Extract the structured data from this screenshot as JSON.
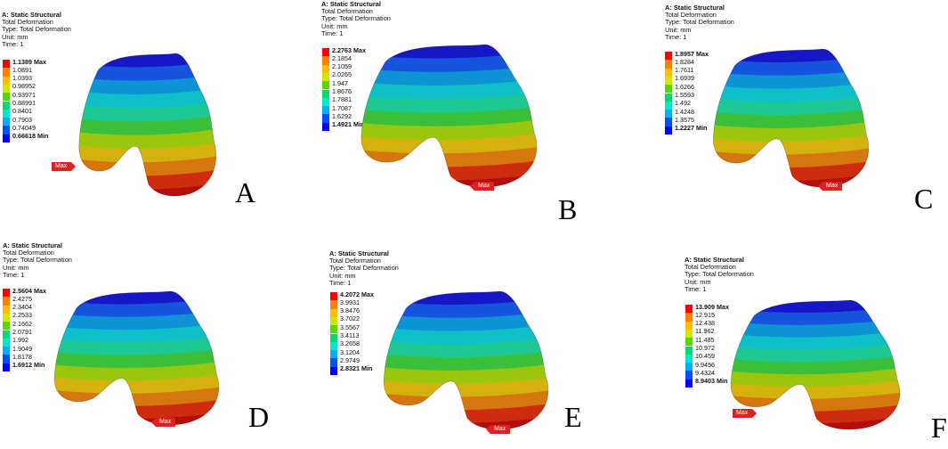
{
  "panels": [
    {
      "letter": "A",
      "title": "A: Static Structural",
      "result": "Total Deformation",
      "type": "Type: Total Deformation",
      "unit": "Unit: mm",
      "time": "Time: 1",
      "legend": [
        "1.1389 Max",
        "1.0891",
        "1.0393",
        "0.98952",
        "0.93971",
        "0.88991",
        "0.8401",
        "0.7903",
        "0.74049",
        "0.66618 Min"
      ],
      "max_label": "Max"
    },
    {
      "letter": "B",
      "title": "A: Static Structural",
      "result": "Total Deformation",
      "type": "Type: Total Deformation",
      "unit": "Unit: mm",
      "time": "Time: 1",
      "legend": [
        "2.2763 Max",
        "2.1854",
        "2.1059",
        "2.0265",
        "1.947",
        "1.8676",
        "1.7881",
        "1.7087",
        "1.6292",
        "1.4921 Min"
      ],
      "max_label": "Max"
    },
    {
      "letter": "C",
      "title": "A: Static Structural",
      "result": "Total Deformation",
      "type": "Type: Total Deformation",
      "unit": "Unit: mm",
      "time": "Time: 1",
      "legend": [
        "1.8957 Max",
        "1.8284",
        "1.7611",
        "1.6939",
        "1.6266",
        "1.5593",
        "1.492",
        "1.4248",
        "1.3575",
        "1.2227 Min"
      ],
      "max_label": "Max"
    },
    {
      "letter": "D",
      "title": "A: Static Structural",
      "result": "Total Deformation",
      "type": "Type: Total Deformation",
      "unit": "Unit: mm",
      "time": "Time: 1",
      "legend": [
        "2.5604 Max",
        "2.4275",
        "2.3404",
        "2.2533",
        "2.1662",
        "2.0791",
        "1.992",
        "1.9049",
        "1.8178",
        "1.6912 Min"
      ],
      "max_label": "Max"
    },
    {
      "letter": "E",
      "title": "A: Static Structural",
      "result": "Total Deformation",
      "type": "Type: Total Deformation",
      "unit": "Unit: mm",
      "time": "Time: 1",
      "legend": [
        "4.2072 Max",
        "3.9931",
        "3.8476",
        "3.7022",
        "3.5567",
        "3.4113",
        "3.2658",
        "3.1204",
        "2.9749",
        "2.8321 Min"
      ],
      "max_label": "Max"
    },
    {
      "letter": "F",
      "title": "A: Static Structural",
      "result": "Total Deformation",
      "type": "Type: Total Deformation",
      "unit": "Unit: mm",
      "time": "Time: 1",
      "legend": [
        "13.909 Max",
        "12.915",
        "12.438",
        "11.962",
        "11.485",
        "10.972",
        "10.459",
        "9.9456",
        "9.4324",
        "8.9403 Min"
      ],
      "max_label": "Max"
    }
  ],
  "legend_colors": [
    "#ff0000",
    "#ff7f00",
    "#ffbf00",
    "#cfe800",
    "#54d800",
    "#00d870",
    "#00e8d0",
    "#00b0ff",
    "#0050ff",
    "#0000ff"
  ]
}
